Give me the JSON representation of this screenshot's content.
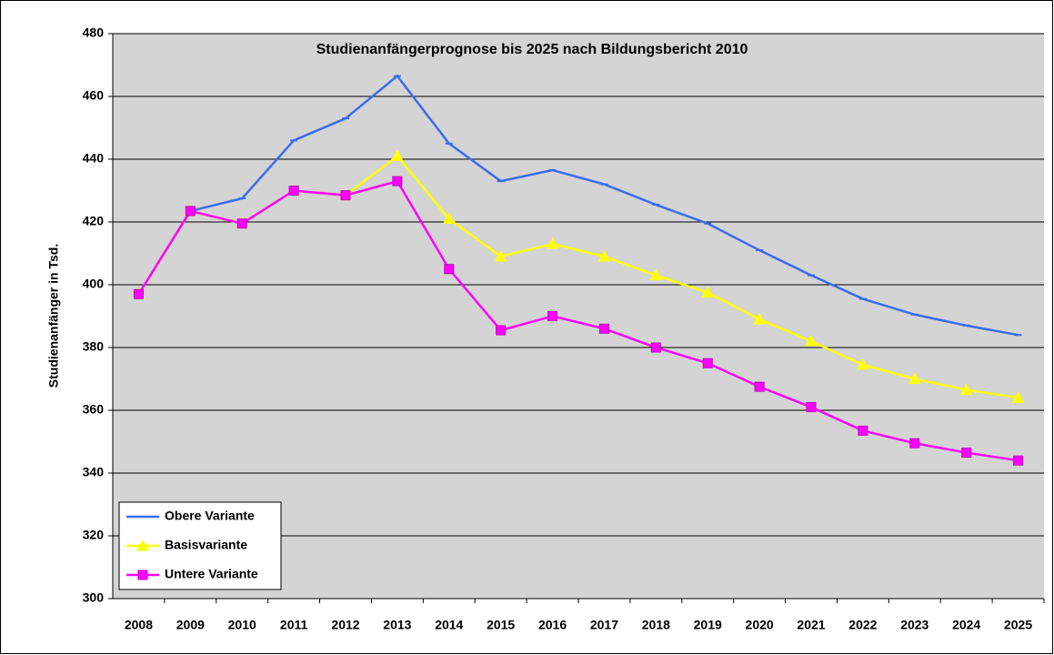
{
  "chart_data": {
    "type": "line",
    "title": "Studienanfängerprognose bis 2025 nach Bildungsbericht 2010",
    "y_label": "Studienanfänger in Tsd.",
    "categories": [
      "2008",
      "2009",
      "2010",
      "2011",
      "2012",
      "2013",
      "2014",
      "2015",
      "2016",
      "2017",
      "2018",
      "2019",
      "2020",
      "2021",
      "2022",
      "2023",
      "2024",
      "2025"
    ],
    "series": [
      {
        "name": "Obere Variante",
        "color": "#3b6cf0",
        "marker": "dash",
        "values": [
          397,
          423.5,
          427.5,
          446,
          453,
          466.5,
          445,
          433,
          436.5,
          432,
          425.5,
          419.5,
          411,
          403,
          395.5,
          390.5,
          387,
          384
        ]
      },
      {
        "name": "Basisvariante",
        "color": "#ffff00",
        "marker": "triangle",
        "values": [
          397,
          423.5,
          419.5,
          430,
          428.5,
          441,
          421,
          409,
          413,
          409,
          403,
          397.5,
          389,
          382,
          374.5,
          370,
          366.5,
          364
        ]
      },
      {
        "name": "Untere Variante",
        "color": "#ff00ff",
        "marker": "square",
        "values": [
          397,
          423.5,
          419.5,
          430,
          428.5,
          433,
          405,
          385.5,
          390,
          386,
          380,
          375,
          367.5,
          361,
          353.5,
          349.5,
          346.5,
          344
        ]
      }
    ],
    "ylim": [
      300,
      480
    ],
    "yticks": [
      300,
      320,
      340,
      360,
      380,
      400,
      420,
      440,
      460,
      480
    ],
    "grid": true,
    "legend": "lower left"
  }
}
